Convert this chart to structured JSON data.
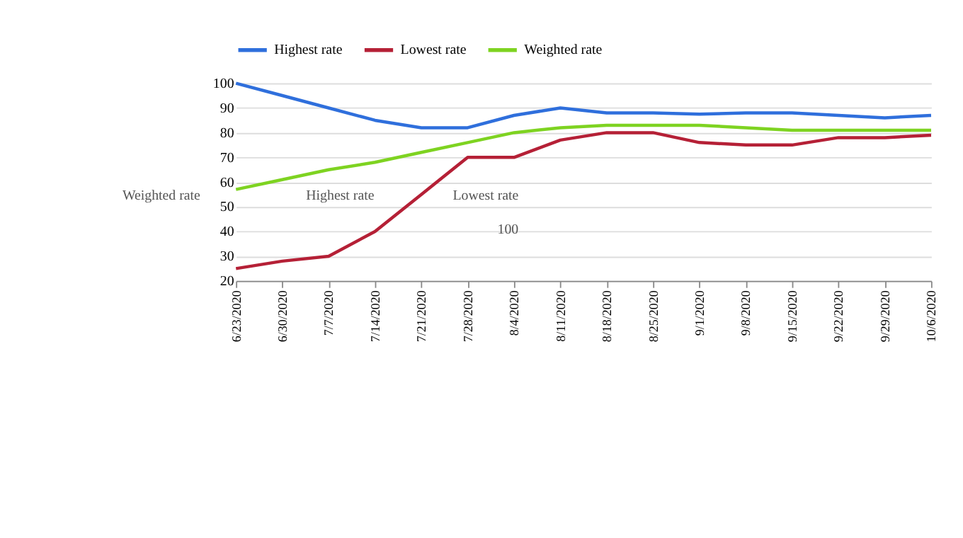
{
  "chart_data": {
    "type": "line",
    "categories": [
      "6/23/2020",
      "6/30/2020",
      "7/7/2020",
      "7/14/2020",
      "7/21/2020",
      "7/28/2020",
      "8/4/2020",
      "8/11/2020",
      "8/18/2020",
      "8/25/2020",
      "9/1/2020",
      "9/8/2020",
      "9/15/2020",
      "9/22/2020",
      "9/29/2020",
      "10/6/2020"
    ],
    "series": [
      {
        "name": "Highest rate",
        "color": "#2f6fdc",
        "values": [
          100,
          95,
          90,
          85,
          82,
          82,
          87,
          90,
          88,
          88,
          87.5,
          88,
          88,
          87,
          86,
          87
        ]
      },
      {
        "name": "Lowest rate",
        "color": "#b52036",
        "values": [
          25,
          28,
          30,
          40,
          55,
          70,
          70,
          77,
          80,
          80,
          76,
          75,
          75,
          78,
          78,
          79
        ]
      },
      {
        "name": "Weighted rate",
        "color": "#7ed321",
        "values": [
          57,
          61,
          65,
          68,
          72,
          76,
          80,
          82,
          83,
          83,
          83,
          82,
          81,
          81,
          81,
          81
        ]
      }
    ],
    "ylim": [
      20,
      100
    ],
    "yticks": [
      20,
      30,
      40,
      50,
      60,
      70,
      80,
      90,
      100
    ],
    "grid": "y",
    "legend": "top",
    "marker": "none",
    "line_style": "solid",
    "annotations": [
      "Weighted rate",
      "Highest rate",
      "Lowest rate",
      "100"
    ]
  }
}
